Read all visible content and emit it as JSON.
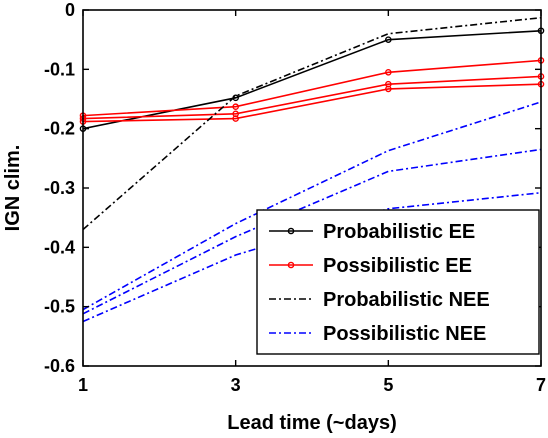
{
  "chart_data": {
    "type": "line",
    "xlabel": "Lead time (~days)",
    "ylabel": "IGN clim.",
    "xlim": [
      1,
      7
    ],
    "ylim": [
      -0.6,
      0
    ],
    "xticks": [
      1,
      3,
      5,
      7
    ],
    "xtick_labels": [
      "1",
      "3",
      "5",
      "7"
    ],
    "yticks": [
      -0.6,
      -0.5,
      -0.4,
      -0.3,
      -0.2,
      -0.1,
      0
    ],
    "ytick_labels": [
      "-0.6",
      "-0.5",
      "-0.4",
      "-0.3",
      "-0.2",
      "-0.1",
      "0"
    ],
    "grid": false,
    "legend_position": "bottom-right",
    "legend": [
      {
        "label": "Probabilistic EE",
        "color": "#000000",
        "style": "solid",
        "marker": true
      },
      {
        "label": "Possibilistic EE",
        "color": "#ff0000",
        "style": "solid",
        "marker": true
      },
      {
        "label": "Probabilistic NEE",
        "color": "#000000",
        "style": "dashdot",
        "marker": false
      },
      {
        "label": "Possibilistic NEE",
        "color": "#0000ff",
        "style": "dashdot",
        "marker": false
      }
    ],
    "series": [
      {
        "group": "Probabilistic EE",
        "color": "#000000",
        "style": "solid",
        "marker": true,
        "x": [
          1,
          3,
          5,
          7
        ],
        "y": [
          -0.2,
          -0.148,
          -0.05,
          -0.035
        ]
      },
      {
        "group": "Possibilistic EE",
        "color": "#ff0000",
        "style": "solid",
        "marker": true,
        "x": [
          1,
          3,
          5,
          7
        ],
        "y": [
          -0.178,
          -0.163,
          -0.105,
          -0.085
        ]
      },
      {
        "group": "Possibilistic EE",
        "color": "#ff0000",
        "style": "solid",
        "marker": true,
        "x": [
          1,
          3,
          5,
          7
        ],
        "y": [
          -0.183,
          -0.175,
          -0.125,
          -0.112
        ]
      },
      {
        "group": "Possibilistic EE",
        "color": "#ff0000",
        "style": "solid",
        "marker": true,
        "x": [
          1,
          3,
          5,
          7
        ],
        "y": [
          -0.188,
          -0.183,
          -0.133,
          -0.125
        ]
      },
      {
        "group": "Probabilistic NEE",
        "color": "#000000",
        "style": "dashdot",
        "marker": false,
        "x": [
          1,
          3,
          5,
          7
        ],
        "y": [
          -0.37,
          -0.145,
          -0.04,
          -0.013
        ]
      },
      {
        "group": "Possibilistic NEE",
        "color": "#0000ff",
        "style": "dashdot",
        "marker": false,
        "x": [
          1,
          3,
          5,
          7
        ],
        "y": [
          -0.505,
          -0.36,
          -0.237,
          -0.155
        ]
      },
      {
        "group": "Possibilistic NEE",
        "color": "#0000ff",
        "style": "dashdot",
        "marker": false,
        "x": [
          1,
          3,
          5,
          7
        ],
        "y": [
          -0.512,
          -0.382,
          -0.272,
          -0.235
        ]
      },
      {
        "group": "Possibilistic NEE",
        "color": "#0000ff",
        "style": "dashdot",
        "marker": false,
        "x": [
          1,
          3,
          5,
          7
        ],
        "y": [
          -0.525,
          -0.413,
          -0.335,
          -0.308
        ]
      }
    ]
  }
}
